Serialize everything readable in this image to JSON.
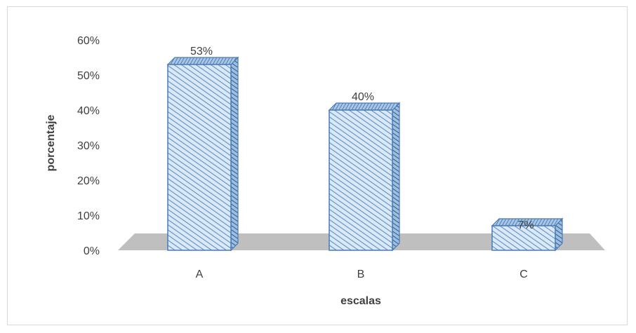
{
  "chart_data": {
    "type": "bar",
    "title": "",
    "xlabel": "escalas",
    "ylabel": "porcentaje",
    "categories": [
      "A",
      "B",
      "C"
    ],
    "values": [
      53,
      40,
      7
    ],
    "data_labels": [
      "53%",
      "40%",
      "7%"
    ],
    "y_ticks": [
      "0%",
      "10%",
      "20%",
      "30%",
      "40%",
      "50%",
      "60%"
    ],
    "ylim": [
      0,
      60
    ],
    "grid": false,
    "legend": "none",
    "style": "3d-column-hatched",
    "colors": {
      "bar_fill": "#dbe9f6",
      "bar_hatch": "#5b8fc7",
      "bar_edge": "#4a7ab5",
      "floor": "#bfbfbf",
      "text": "#404040"
    }
  }
}
